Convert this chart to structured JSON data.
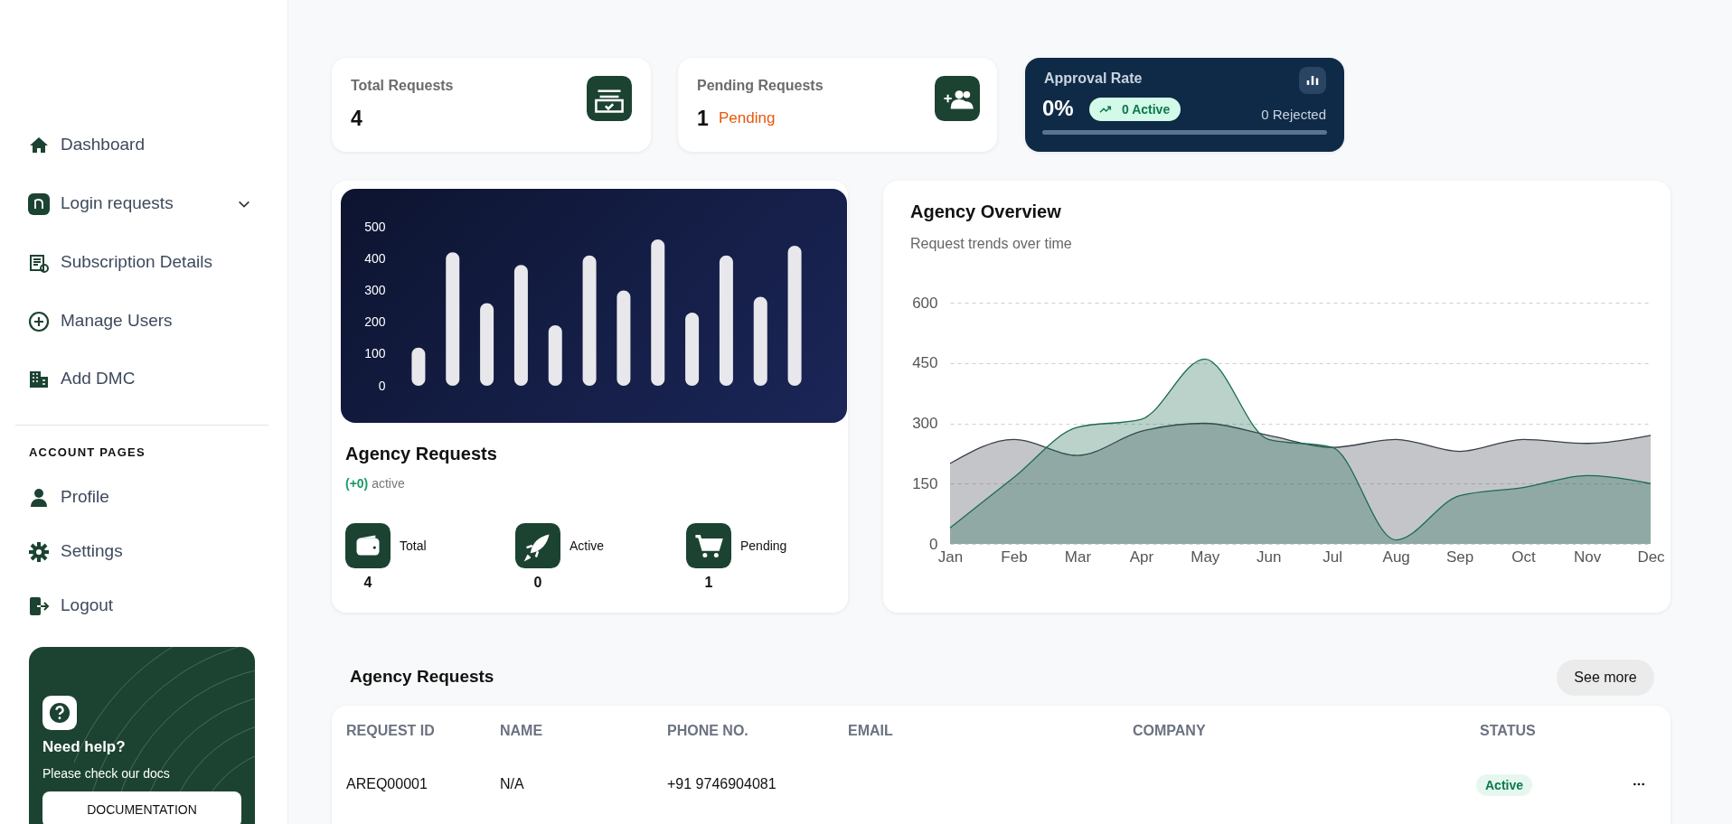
{
  "chart_data": [
    {
      "type": "other",
      "annotations": [
        "Dashboard",
        "Login requests",
        "Subscription Details",
        "Manage Users",
        "Add DMC",
        "ACCOUNT PAGES",
        "Profile",
        "Settings",
        "Logout",
        "Need help?",
        "Please check our docs",
        "DOCUMENTATION"
      ]
    },
    {
      "type": "other",
      "title": "Total Requests",
      "annotations": [
        "4"
      ]
    },
    {
      "type": "other",
      "title": "Pending Requests",
      "annotations": [
        "1",
        "Pending"
      ]
    },
    {
      "type": "other",
      "title": "Approval Rate",
      "annotations": [
        "0%",
        "0 Active",
        "0 Rejected"
      ]
    },
    {
      "type": "bar",
      "title": "Agency Requests",
      "subtitle": "(+0) active",
      "categories": [
        null,
        null,
        null,
        null,
        null,
        null,
        null,
        null,
        null,
        null,
        null,
        null
      ],
      "values": [
        120,
        420,
        260,
        380,
        190,
        410,
        300,
        460,
        230,
        410,
        280,
        440
      ],
      "color": "#e8e8ec",
      "ylim": [
        0,
        500
      ],
      "yticks": [
        0,
        100,
        200,
        300,
        400,
        500
      ],
      "tick_labels": "y",
      "annotations": [
        "Total",
        "4",
        "Active",
        "0",
        "Pending",
        "1"
      ]
    },
    {
      "type": "area",
      "title": "Agency Overview",
      "subtitle": "Request trends over time",
      "categories": [
        "Jan",
        "Feb",
        "Mar",
        "Apr",
        "May",
        "Jun",
        "Jul",
        "Aug",
        "Sep",
        "Oct",
        "Nov",
        "Dec"
      ],
      "series": [
        {
          "color": "#3a3f4b",
          "values": [
            200,
            260,
            220,
            280,
            300,
            270,
            240,
            260,
            230,
            260,
            250,
            270
          ]
        },
        {
          "color": "#1a6b4f",
          "values": [
            40,
            165,
            290,
            310,
            460,
            260,
            240,
            10,
            120,
            140,
            170,
            150
          ]
        }
      ],
      "ylim": [
        0,
        600
      ],
      "yticks": [
        0,
        150,
        300,
        450,
        600
      ],
      "grid": "y"
    },
    {
      "type": "other",
      "title": "Agency Requests",
      "annotations": [
        "See more",
        "REQUEST ID",
        "NAME",
        "PHONE NO.",
        "EMAIL",
        "COMPANY",
        "STATUS",
        "AREQ00001",
        "N/A",
        "+91 9746904081",
        "Active"
      ]
    }
  ]
}
